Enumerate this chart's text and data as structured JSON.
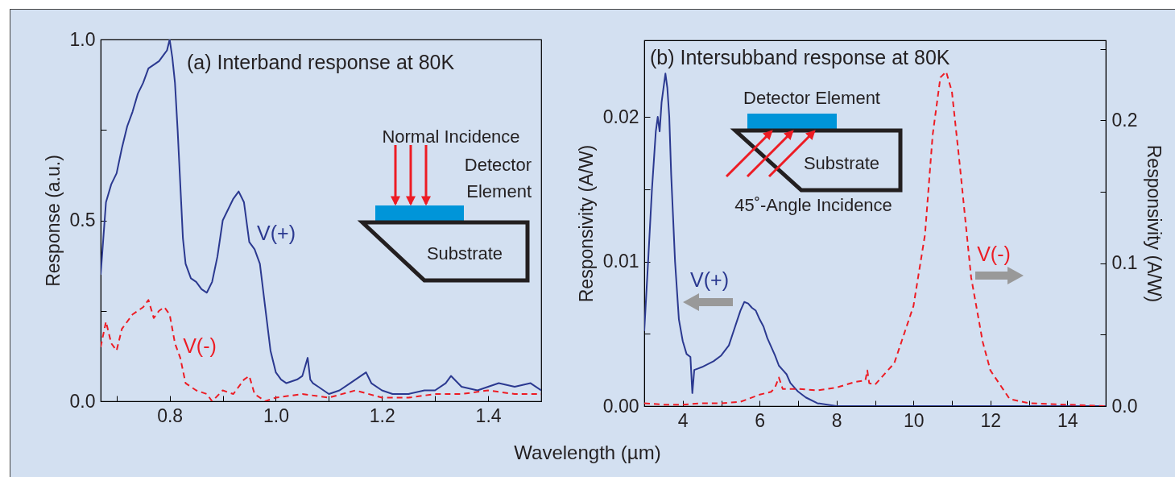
{
  "chart_data": [
    {
      "type": "line",
      "title": "(a) Interband response at 80K",
      "xlabel": "Wavelength (µm)",
      "ylabel": "Response (a.u.)",
      "xlim": [
        0.67,
        1.5
      ],
      "xticks": [
        {
          "value": 0.7,
          "label": null
        },
        {
          "value": 0.8,
          "label": "0.8"
        },
        {
          "value": 0.9,
          "label": null
        },
        {
          "value": 1.0,
          "label": "1.0"
        },
        {
          "value": 1.1,
          "label": null
        },
        {
          "value": 1.2,
          "label": "1.2"
        },
        {
          "value": 1.3,
          "label": null
        },
        {
          "value": 1.4,
          "label": "1.4"
        }
      ],
      "ylim": [
        0,
        1
      ],
      "yticks": [
        {
          "value": 0,
          "label": "0.0"
        },
        {
          "value": 0.25,
          "label": null
        },
        {
          "value": 0.5,
          "label": "0.5"
        },
        {
          "value": 0.75,
          "label": null
        },
        {
          "value": 1,
          "label": "1.0"
        }
      ],
      "grid": false,
      "legend": false,
      "marker": "none",
      "annotations": [
        "Normal Incidence",
        "Detector Element",
        "Substrate"
      ],
      "series": [
        {
          "name": "V(+)",
          "color": "#2b3990",
          "line_style": "solid",
          "x": [
            0.67,
            0.675,
            0.68,
            0.69,
            0.7,
            0.71,
            0.72,
            0.73,
            0.74,
            0.75,
            0.76,
            0.77,
            0.78,
            0.79,
            0.795,
            0.8,
            0.805,
            0.81,
            0.815,
            0.82,
            0.825,
            0.83,
            0.84,
            0.85,
            0.86,
            0.87,
            0.88,
            0.89,
            0.9,
            0.91,
            0.92,
            0.93,
            0.94,
            0.95,
            0.96,
            0.97,
            0.98,
            0.99,
            1.0,
            1.01,
            1.02,
            1.04,
            1.05,
            1.06,
            1.065,
            1.07,
            1.08,
            1.1,
            1.12,
            1.14,
            1.16,
            1.17,
            1.18,
            1.2,
            1.22,
            1.25,
            1.28,
            1.3,
            1.32,
            1.33,
            1.35,
            1.38,
            1.4,
            1.42,
            1.45,
            1.48,
            1.5
          ],
          "values": [
            0.35,
            0.45,
            0.55,
            0.6,
            0.63,
            0.7,
            0.76,
            0.8,
            0.85,
            0.88,
            0.92,
            0.93,
            0.94,
            0.96,
            0.97,
            1.0,
            0.95,
            0.88,
            0.75,
            0.6,
            0.45,
            0.38,
            0.34,
            0.33,
            0.31,
            0.3,
            0.33,
            0.4,
            0.5,
            0.53,
            0.56,
            0.58,
            0.55,
            0.44,
            0.42,
            0.38,
            0.26,
            0.14,
            0.08,
            0.06,
            0.05,
            0.06,
            0.07,
            0.12,
            0.06,
            0.05,
            0.04,
            0.02,
            0.03,
            0.05,
            0.07,
            0.08,
            0.05,
            0.03,
            0.02,
            0.02,
            0.03,
            0.03,
            0.05,
            0.07,
            0.04,
            0.03,
            0.04,
            0.05,
            0.04,
            0.05,
            0.03
          ]
        },
        {
          "name": "V(-)",
          "color": "#ed1c24",
          "line_style": "dashed",
          "x": [
            0.67,
            0.68,
            0.69,
            0.7,
            0.71,
            0.72,
            0.73,
            0.74,
            0.75,
            0.76,
            0.77,
            0.78,
            0.79,
            0.8,
            0.81,
            0.82,
            0.83,
            0.85,
            0.87,
            0.88,
            0.9,
            0.92,
            0.94,
            0.95,
            0.96,
            0.98,
            1.0,
            1.05,
            1.1,
            1.15,
            1.2,
            1.25,
            1.3,
            1.35,
            1.4,
            1.45,
            1.5
          ],
          "values": [
            0.15,
            0.22,
            0.16,
            0.14,
            0.2,
            0.22,
            0.24,
            0.25,
            0.26,
            0.28,
            0.23,
            0.25,
            0.26,
            0.24,
            0.16,
            0.12,
            0.05,
            0.03,
            0.02,
            0.0,
            0.03,
            0.02,
            0.06,
            0.07,
            0.02,
            0.0,
            0.01,
            0.02,
            0.01,
            0.03,
            0.01,
            0.01,
            0.02,
            0.02,
            0.03,
            0.02,
            0.02
          ]
        }
      ]
    },
    {
      "type": "line",
      "title": "(b) Intersubband response at 80K",
      "ylabel": "Responsivity (A/W)",
      "y2label": "Responsivity (A/W)",
      "xlim": [
        3,
        15
      ],
      "xticks": [
        {
          "value": 3,
          "label": null
        },
        {
          "value": 4,
          "label": "4"
        },
        {
          "value": 5,
          "label": null
        },
        {
          "value": 6,
          "label": "6"
        },
        {
          "value": 7,
          "label": null
        },
        {
          "value": 8,
          "label": "8"
        },
        {
          "value": 9,
          "label": null
        },
        {
          "value": 10,
          "label": "10"
        },
        {
          "value": 11,
          "label": null
        },
        {
          "value": 12,
          "label": "12"
        },
        {
          "value": 13,
          "label": null
        },
        {
          "value": 14,
          "label": "14"
        }
      ],
      "ylim": [
        0,
        0.0253
      ],
      "yticks": [
        {
          "value": 0,
          "label": "0.00"
        },
        {
          "value": 0.005,
          "label": null
        },
        {
          "value": 0.01,
          "label": "0.01"
        },
        {
          "value": 0.015,
          "label": null
        },
        {
          "value": 0.02,
          "label": "0.02"
        }
      ],
      "y2lim": [
        0,
        0.256
      ],
      "y2ticks": [
        {
          "value": 0,
          "label": "0.0"
        },
        {
          "value": 0.05,
          "label": null
        },
        {
          "value": 0.1,
          "label": "0.1"
        },
        {
          "value": 0.15,
          "label": null
        },
        {
          "value": 0.2,
          "label": "0.2"
        },
        {
          "value": 0.25,
          "label": null
        }
      ],
      "grid": false,
      "legend": false,
      "marker": "none",
      "annotations": [
        "Detector Element",
        "Substrate",
        "45˚-Angle Incidence"
      ],
      "series": [
        {
          "name": "V(+)",
          "color": "#2b3990",
          "line_style": "solid",
          "x": [
            3.0,
            3.1,
            3.2,
            3.3,
            3.35,
            3.4,
            3.45,
            3.5,
            3.55,
            3.6,
            3.65,
            3.7,
            3.8,
            3.9,
            4.0,
            4.1,
            4.2,
            4.25,
            4.3,
            4.4,
            4.5,
            4.8,
            5.0,
            5.2,
            5.3,
            5.4,
            5.5,
            5.6,
            5.7,
            5.8,
            5.9,
            6.0,
            6.1,
            6.2,
            6.4,
            6.5,
            6.6,
            6.7,
            6.8,
            7.0,
            7.2,
            7.5,
            8.0,
            9.0,
            10.0,
            12.0,
            15.0
          ],
          "values": [
            0.0052,
            0.01,
            0.015,
            0.019,
            0.02,
            0.019,
            0.021,
            0.022,
            0.023,
            0.022,
            0.02,
            0.016,
            0.01,
            0.006,
            0.0045,
            0.0036,
            0.0034,
            0.0009,
            0.0025,
            0.0026,
            0.0027,
            0.0031,
            0.0035,
            0.0042,
            0.005,
            0.0058,
            0.0066,
            0.0072,
            0.0071,
            0.0068,
            0.0066,
            0.006,
            0.0055,
            0.0047,
            0.0035,
            0.0028,
            0.0025,
            0.0022,
            0.0016,
            0.001,
            0.0006,
            0.0002,
            0.0,
            0.0,
            0.0,
            0.0,
            0.0
          ]
        },
        {
          "name": "V(-)",
          "color": "#ed1c24",
          "line_style": "dashed",
          "axis": "y2",
          "x": [
            3.0,
            3.5,
            4.0,
            4.5,
            5.0,
            5.5,
            6.0,
            6.3,
            6.4,
            6.5,
            6.6,
            7.0,
            7.5,
            8.0,
            8.5,
            8.75,
            8.8,
            8.85,
            9.0,
            9.5,
            10.0,
            10.3,
            10.5,
            10.7,
            10.85,
            11.0,
            11.2,
            11.5,
            11.8,
            12.0,
            12.5,
            13.0,
            14.0,
            15.0
          ],
          "values": [
            0.002,
            0.001,
            0.001,
            0.002,
            0.002,
            0.003,
            0.008,
            0.01,
            0.013,
            0.02,
            0.012,
            0.012,
            0.011,
            0.013,
            0.017,
            0.018,
            0.025,
            0.016,
            0.015,
            0.03,
            0.07,
            0.12,
            0.19,
            0.23,
            0.234,
            0.22,
            0.17,
            0.09,
            0.045,
            0.025,
            0.005,
            0.002,
            0.001,
            0.0
          ]
        }
      ]
    }
  ]
}
